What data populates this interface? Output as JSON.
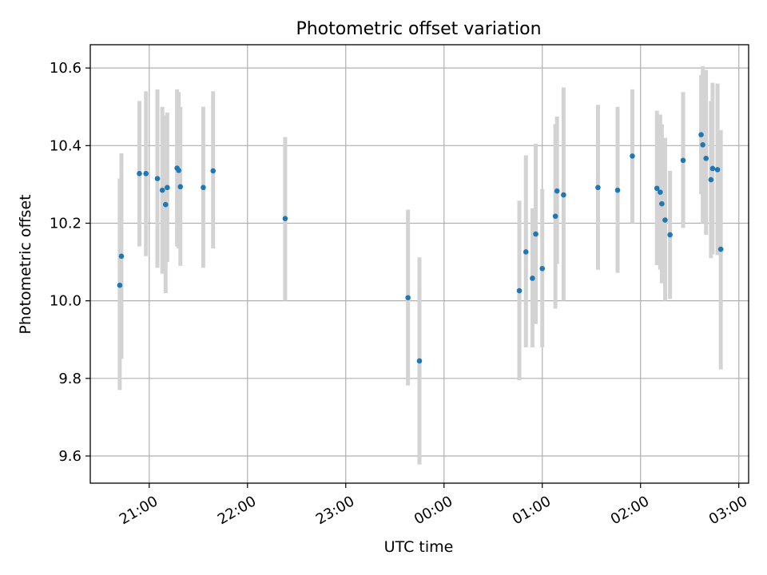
{
  "chart_data": {
    "type": "scatter",
    "title": "Photometric offset variation",
    "xlabel": "UTC time",
    "ylabel": "Photometric offset",
    "xlim": [
      "20:24",
      "03:06"
    ],
    "ylim": [
      9.53,
      10.66
    ],
    "x_ticks": [
      "21:00",
      "22:00",
      "23:00",
      "00:00",
      "01:00",
      "02:00",
      "03:00"
    ],
    "y_ticks": [
      9.6,
      9.8,
      10.0,
      10.2,
      10.4,
      10.6
    ],
    "grid": true,
    "marker_color": "#1f77b4",
    "errorbar_color": "#d3d3d3",
    "points": [
      {
        "t": "20:42",
        "y": 10.04,
        "lo": 9.77,
        "hi": 10.315
      },
      {
        "t": "20:43",
        "y": 10.115,
        "lo": 9.85,
        "hi": 10.38
      },
      {
        "t": "20:54",
        "y": 10.328,
        "lo": 10.14,
        "hi": 10.515
      },
      {
        "t": "20:58",
        "y": 10.328,
        "lo": 10.115,
        "hi": 10.54
      },
      {
        "t": "21:05",
        "y": 10.315,
        "lo": 10.085,
        "hi": 10.545
      },
      {
        "t": "21:08",
        "y": 10.285,
        "lo": 10.07,
        "hi": 10.5
      },
      {
        "t": "21:10",
        "y": 10.248,
        "lo": 10.02,
        "hi": 10.478
      },
      {
        "t": "21:11",
        "y": 10.292,
        "lo": 10.1,
        "hi": 10.485
      },
      {
        "t": "21:17",
        "y": 10.342,
        "lo": 10.14,
        "hi": 10.545
      },
      {
        "t": "21:18",
        "y": 10.336,
        "lo": 10.135,
        "hi": 10.538
      },
      {
        "t": "21:19",
        "y": 10.294,
        "lo": 10.09,
        "hi": 10.5
      },
      {
        "t": "21:33",
        "y": 10.292,
        "lo": 10.085,
        "hi": 10.5
      },
      {
        "t": "21:39",
        "y": 10.335,
        "lo": 10.135,
        "hi": 10.54
      },
      {
        "t": "22:23",
        "y": 10.212,
        "lo": 10.0,
        "hi": 10.422
      },
      {
        "t": "23:38",
        "y": 10.008,
        "lo": 9.782,
        "hi": 10.235
      },
      {
        "t": "23:45",
        "y": 9.845,
        "lo": 9.578,
        "hi": 10.112
      },
      {
        "t": "00:46",
        "y": 10.026,
        "lo": 9.795,
        "hi": 10.258
      },
      {
        "t": "00:50",
        "y": 10.126,
        "lo": 9.88,
        "hi": 10.375
      },
      {
        "t": "00:54",
        "y": 10.058,
        "lo": 9.88,
        "hi": 10.238
      },
      {
        "t": "00:56",
        "y": 10.172,
        "lo": 9.94,
        "hi": 10.405
      },
      {
        "t": "01:00",
        "y": 10.083,
        "lo": 9.88,
        "hi": 10.288
      },
      {
        "t": "01:08",
        "y": 10.218,
        "lo": 9.98,
        "hi": 10.455
      },
      {
        "t": "01:09",
        "y": 10.283,
        "lo": 10.095,
        "hi": 10.475
      },
      {
        "t": "01:13",
        "y": 10.273,
        "lo": 10.0,
        "hi": 10.55
      },
      {
        "t": "01:34",
        "y": 10.292,
        "lo": 10.08,
        "hi": 10.505
      },
      {
        "t": "01:46",
        "y": 10.285,
        "lo": 10.072,
        "hi": 10.5
      },
      {
        "t": "01:55",
        "y": 10.373,
        "lo": 10.2,
        "hi": 10.545
      },
      {
        "t": "02:10",
        "y": 10.29,
        "lo": 10.092,
        "hi": 10.49
      },
      {
        "t": "02:12",
        "y": 10.28,
        "lo": 10.08,
        "hi": 10.48
      },
      {
        "t": "02:13",
        "y": 10.25,
        "lo": 10.045,
        "hi": 10.455
      },
      {
        "t": "02:15",
        "y": 10.208,
        "lo": 10.0,
        "hi": 10.42
      },
      {
        "t": "02:18",
        "y": 10.17,
        "lo": 10.005,
        "hi": 10.335
      },
      {
        "t": "02:26",
        "y": 10.362,
        "lo": 10.188,
        "hi": 10.538
      },
      {
        "t": "02:37",
        "y": 10.428,
        "lo": 10.275,
        "hi": 10.582
      },
      {
        "t": "02:38",
        "y": 10.402,
        "lo": 10.2,
        "hi": 10.605
      },
      {
        "t": "02:40",
        "y": 10.367,
        "lo": 10.17,
        "hi": 10.595
      },
      {
        "t": "02:43",
        "y": 10.312,
        "lo": 10.11,
        "hi": 10.515
      },
      {
        "t": "02:44",
        "y": 10.341,
        "lo": 10.12,
        "hi": 10.562
      },
      {
        "t": "02:47",
        "y": 10.338,
        "lo": 10.118,
        "hi": 10.56
      },
      {
        "t": "02:49",
        "y": 10.133,
        "lo": 9.823,
        "hi": 10.44
      }
    ]
  }
}
